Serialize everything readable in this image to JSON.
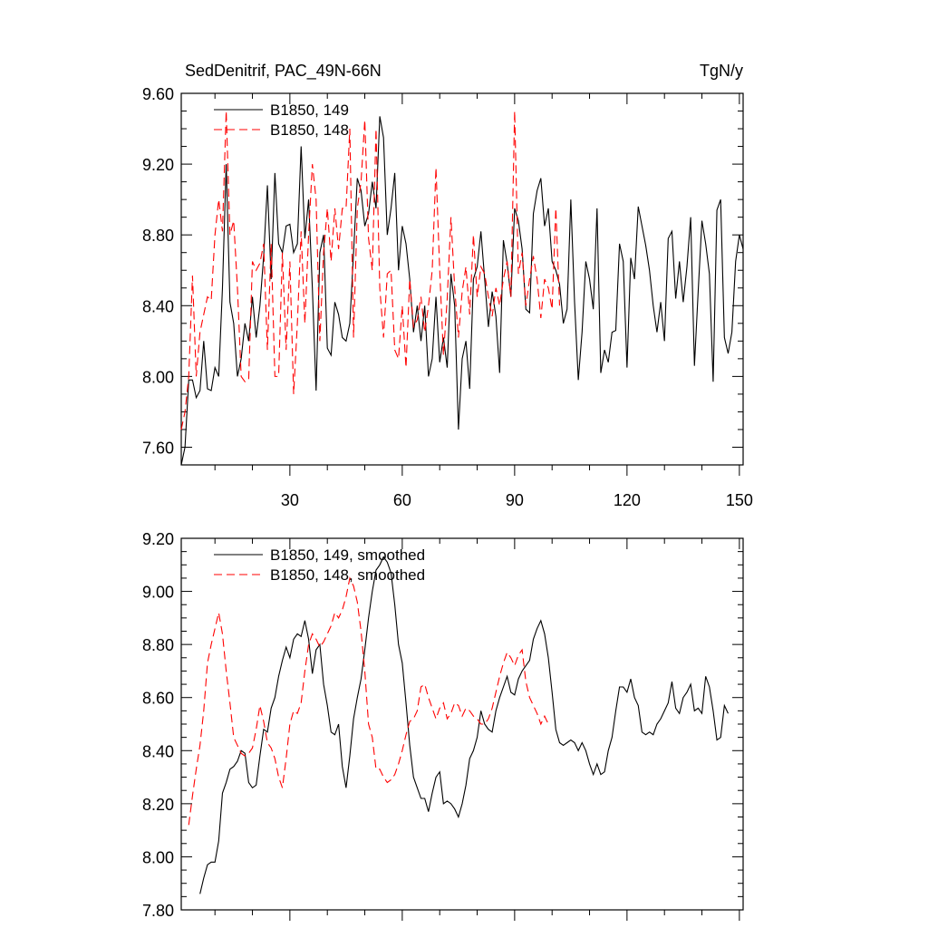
{
  "chart_data": [
    {
      "type": "line",
      "title": "SedDenitrif, PAC_49N-66N",
      "units": "TgN/y",
      "xlabel": "",
      "ylabel": "",
      "xlim": [
        1,
        151
      ],
      "ylim": [
        7.5,
        9.6
      ],
      "yticks": [
        "7.60",
        "8.00",
        "8.40",
        "8.80",
        "9.20",
        "9.60"
      ],
      "yticks_values": [
        7.6,
        8.0,
        8.4,
        8.8,
        9.2,
        9.6
      ],
      "xticks": [
        "30",
        "60",
        "90",
        "120",
        "150"
      ],
      "xticks_values": [
        30,
        60,
        90,
        120,
        150
      ],
      "series": [
        {
          "name": "B1850, 149",
          "color": "#000000",
          "dash": "solid",
          "x_start": 1,
          "values": [
            7.5,
            7.6,
            7.98,
            7.98,
            7.88,
            7.92,
            8.2,
            7.93,
            7.92,
            8.05,
            8.0,
            8.5,
            9.2,
            8.42,
            8.3,
            8.0,
            8.1,
            8.3,
            8.2,
            8.45,
            8.22,
            8.4,
            8.68,
            9.08,
            8.55,
            9.15,
            8.75,
            8.7,
            8.85,
            8.86,
            8.7,
            8.75,
            9.3,
            8.78,
            9.0,
            8.5,
            7.92,
            8.7,
            8.8,
            8.16,
            8.12,
            8.42,
            8.35,
            8.22,
            8.2,
            8.3,
            8.7,
            9.12,
            9.05,
            8.85,
            8.92,
            9.1,
            8.95,
            9.47,
            9.35,
            8.8,
            8.95,
            9.15,
            8.6,
            8.85,
            8.75,
            8.55,
            8.25,
            8.4,
            8.2,
            8.4,
            8.0,
            8.1,
            8.45,
            8.08,
            8.22,
            8.05,
            8.58,
            8.4,
            7.7,
            8.1,
            8.2,
            7.93,
            8.55,
            8.62,
            8.82,
            8.55,
            8.28,
            8.48,
            8.34,
            8.02,
            8.77,
            8.64,
            8.45,
            8.95,
            8.88,
            8.72,
            8.38,
            8.36,
            8.92,
            9.05,
            9.12,
            8.85,
            8.95,
            8.65,
            8.6,
            8.52,
            8.3,
            8.38,
            9.0,
            8.42,
            7.98,
            8.25,
            8.65,
            8.55,
            8.38,
            8.95,
            8.02,
            8.15,
            8.08,
            8.25,
            8.26,
            8.75,
            8.65,
            8.05,
            8.67,
            8.55,
            8.96,
            8.85,
            8.74,
            8.6,
            8.4,
            8.25,
            8.42,
            8.2,
            8.78,
            8.82,
            8.44,
            8.65,
            8.42,
            8.62,
            8.9,
            8.06,
            8.48,
            8.88,
            8.75,
            8.58,
            7.97,
            8.94,
            9.0,
            8.22,
            8.13,
            8.25,
            8.65,
            8.8,
            8.72
          ]
        },
        {
          "name": "B1850, 148",
          "color": "#ff0000",
          "dash": "dashed",
          "x_start": 1,
          "values": [
            7.7,
            7.8,
            8.0,
            8.57,
            8.0,
            8.25,
            8.35,
            8.45,
            8.43,
            8.8,
            9.0,
            8.82,
            9.5,
            8.8,
            8.88,
            8.5,
            8.0,
            7.97,
            7.98,
            8.65,
            8.6,
            8.64,
            8.75,
            8.15,
            8.75,
            8.0,
            8.0,
            8.7,
            8.15,
            8.65,
            7.9,
            8.3,
            8.82,
            8.3,
            8.8,
            9.2,
            9.0,
            8.2,
            8.7,
            8.95,
            8.65,
            8.95,
            8.72,
            8.95,
            8.95,
            9.4,
            8.22,
            8.95,
            9.1,
            9.45,
            8.78,
            8.6,
            9.4,
            8.5,
            8.22,
            8.58,
            8.6,
            8.15,
            8.1,
            8.4,
            8.05,
            8.55,
            8.28,
            8.32,
            8.45,
            8.25,
            8.4,
            8.6,
            9.18,
            8.6,
            8.12,
            8.44,
            8.9,
            8.5,
            8.22,
            8.48,
            8.62,
            8.35,
            8.8,
            8.45,
            8.62,
            8.58,
            8.45,
            8.34,
            8.5,
            8.4,
            8.55,
            8.65,
            8.45,
            9.5,
            8.58,
            8.7,
            8.4,
            8.55,
            8.68,
            8.55,
            8.33,
            8.55,
            8.5,
            8.38,
            8.95,
            8.4
          ]
        }
      ],
      "legend_position": "top-left"
    },
    {
      "type": "line",
      "title": "",
      "xlabel": "",
      "ylabel": "",
      "xlim": [
        1,
        151
      ],
      "ylim": [
        7.8,
        9.2
      ],
      "yticks": [
        "7.80",
        "8.00",
        "8.20",
        "8.40",
        "8.60",
        "8.80",
        "9.00",
        "9.20"
      ],
      "yticks_values": [
        7.8,
        8.0,
        8.2,
        8.4,
        8.6,
        8.8,
        9.0,
        9.2
      ],
      "xticks_values": [
        30,
        60,
        90,
        120,
        150
      ],
      "series": [
        {
          "name": "B1850, 149, smoothed",
          "color": "#000000",
          "dash": "solid",
          "x_start": 6,
          "values": [
            7.86,
            7.92,
            7.97,
            7.98,
            7.98,
            8.06,
            8.24,
            8.28,
            8.33,
            8.34,
            8.36,
            8.4,
            8.39,
            8.28,
            8.26,
            8.27,
            8.38,
            8.48,
            8.47,
            8.56,
            8.6,
            8.68,
            8.74,
            8.79,
            8.75,
            8.82,
            8.84,
            8.83,
            8.89,
            8.82,
            8.69,
            8.78,
            8.8,
            8.65,
            8.57,
            8.47,
            8.46,
            8.5,
            8.34,
            8.26,
            8.38,
            8.52,
            8.6,
            8.67,
            8.78,
            8.9,
            9.0,
            9.08,
            9.1,
            9.13,
            9.11,
            9.07,
            8.95,
            8.8,
            8.73,
            8.58,
            8.42,
            8.3,
            8.26,
            8.22,
            8.22,
            8.17,
            8.24,
            8.3,
            8.32,
            8.2,
            8.21,
            8.2,
            8.18,
            8.15,
            8.2,
            8.27,
            8.37,
            8.4,
            8.45,
            8.55,
            8.5,
            8.48,
            8.47,
            8.55,
            8.6,
            8.64,
            8.68,
            8.62,
            8.61,
            8.67,
            8.7,
            8.72,
            8.74,
            8.82,
            8.86,
            8.89,
            8.84,
            8.75,
            8.62,
            8.48,
            8.43,
            8.42,
            8.43,
            8.44,
            8.43,
            8.4,
            8.43,
            8.4,
            8.35,
            8.31,
            8.35,
            8.31,
            8.32,
            8.4,
            8.45,
            8.55,
            8.64,
            8.64,
            8.62,
            8.67,
            8.6,
            8.57,
            8.47,
            8.46,
            8.47,
            8.46,
            8.5,
            8.52,
            8.55,
            8.58,
            8.66,
            8.56,
            8.54,
            8.6,
            8.62,
            8.65,
            8.55,
            8.56,
            8.54,
            8.68,
            8.64,
            8.55,
            8.44,
            8.45,
            8.57,
            8.54
          ]
        },
        {
          "name": "B1850, 148, smoothed",
          "color": "#ff0000",
          "dash": "dashed",
          "x_start": 3,
          "values": [
            8.12,
            8.23,
            8.33,
            8.42,
            8.55,
            8.73,
            8.8,
            8.86,
            8.92,
            8.84,
            8.7,
            8.58,
            8.45,
            8.42,
            8.39,
            8.38,
            8.39,
            8.41,
            8.48,
            8.57,
            8.51,
            8.43,
            8.41,
            8.37,
            8.3,
            8.26,
            8.37,
            8.5,
            8.55,
            8.54,
            8.58,
            8.7,
            8.8,
            8.84,
            8.82,
            8.79,
            8.81,
            8.84,
            8.87,
            8.92,
            8.9,
            8.93,
            8.98,
            9.05,
            9.02,
            8.96,
            8.85,
            8.7,
            8.5,
            8.45,
            8.33,
            8.33,
            8.3,
            8.28,
            8.29,
            8.31,
            8.35,
            8.4,
            8.46,
            8.51,
            8.52,
            8.55,
            8.64,
            8.65,
            8.6,
            8.56,
            8.52,
            8.56,
            8.58,
            8.52,
            8.54,
            8.58,
            8.57,
            8.53,
            8.56,
            8.55,
            8.53,
            8.52,
            8.5,
            8.5,
            8.52,
            8.56,
            8.62,
            8.68,
            8.73,
            8.77,
            8.75,
            8.72,
            8.76,
            8.78,
            8.66,
            8.6,
            8.57,
            8.54,
            8.5,
            8.53,
            8.5
          ]
        }
      ],
      "legend_position": "top-left"
    }
  ]
}
